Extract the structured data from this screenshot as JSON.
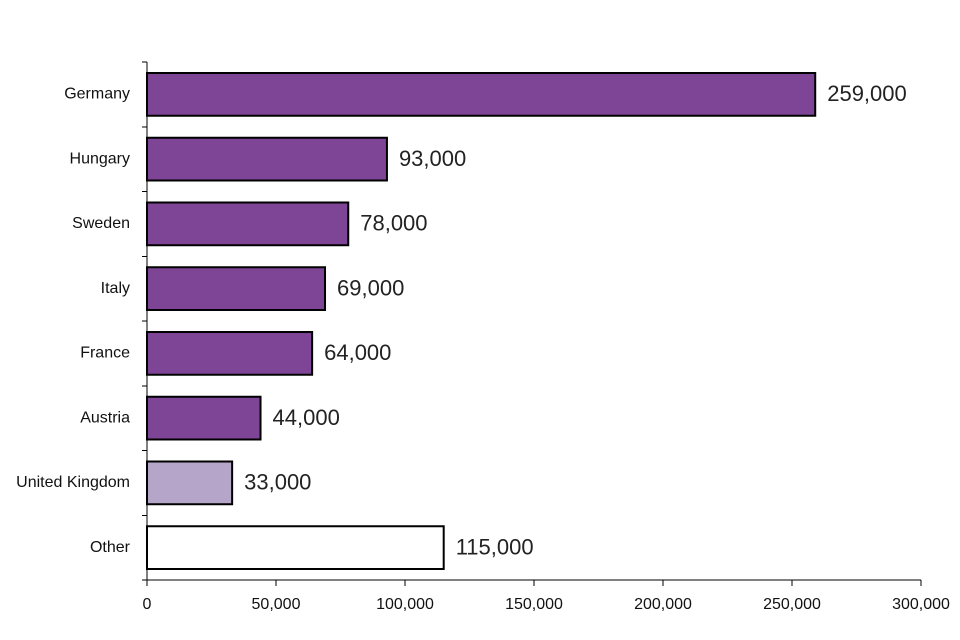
{
  "chart_data": {
    "type": "bar",
    "orientation": "horizontal",
    "title": "",
    "xlabel": "",
    "ylabel": "",
    "xlim": [
      0,
      300000
    ],
    "x_ticks": [
      0,
      50000,
      100000,
      150000,
      200000,
      250000,
      300000
    ],
    "x_tick_labels": [
      "0",
      "50,000",
      "100,000",
      "150,000",
      "200,000",
      "250,000",
      "300,000"
    ],
    "grid": false,
    "categories": [
      "Germany",
      "Hungary",
      "Sweden",
      "Italy",
      "France",
      "Austria",
      "United Kingdom",
      "Other"
    ],
    "values": [
      259000,
      93000,
      78000,
      69000,
      64000,
      44000,
      33000,
      115000
    ],
    "data_labels": [
      "259,000",
      "93,000",
      "78,000",
      "69,000",
      "64,000",
      "44,000",
      "33,000",
      "115,000"
    ],
    "colors": [
      "#7e4597",
      "#7e4597",
      "#7e4597",
      "#7e4597",
      "#7e4597",
      "#7e4597",
      "#b5a5c9",
      "#ffffff"
    ]
  }
}
